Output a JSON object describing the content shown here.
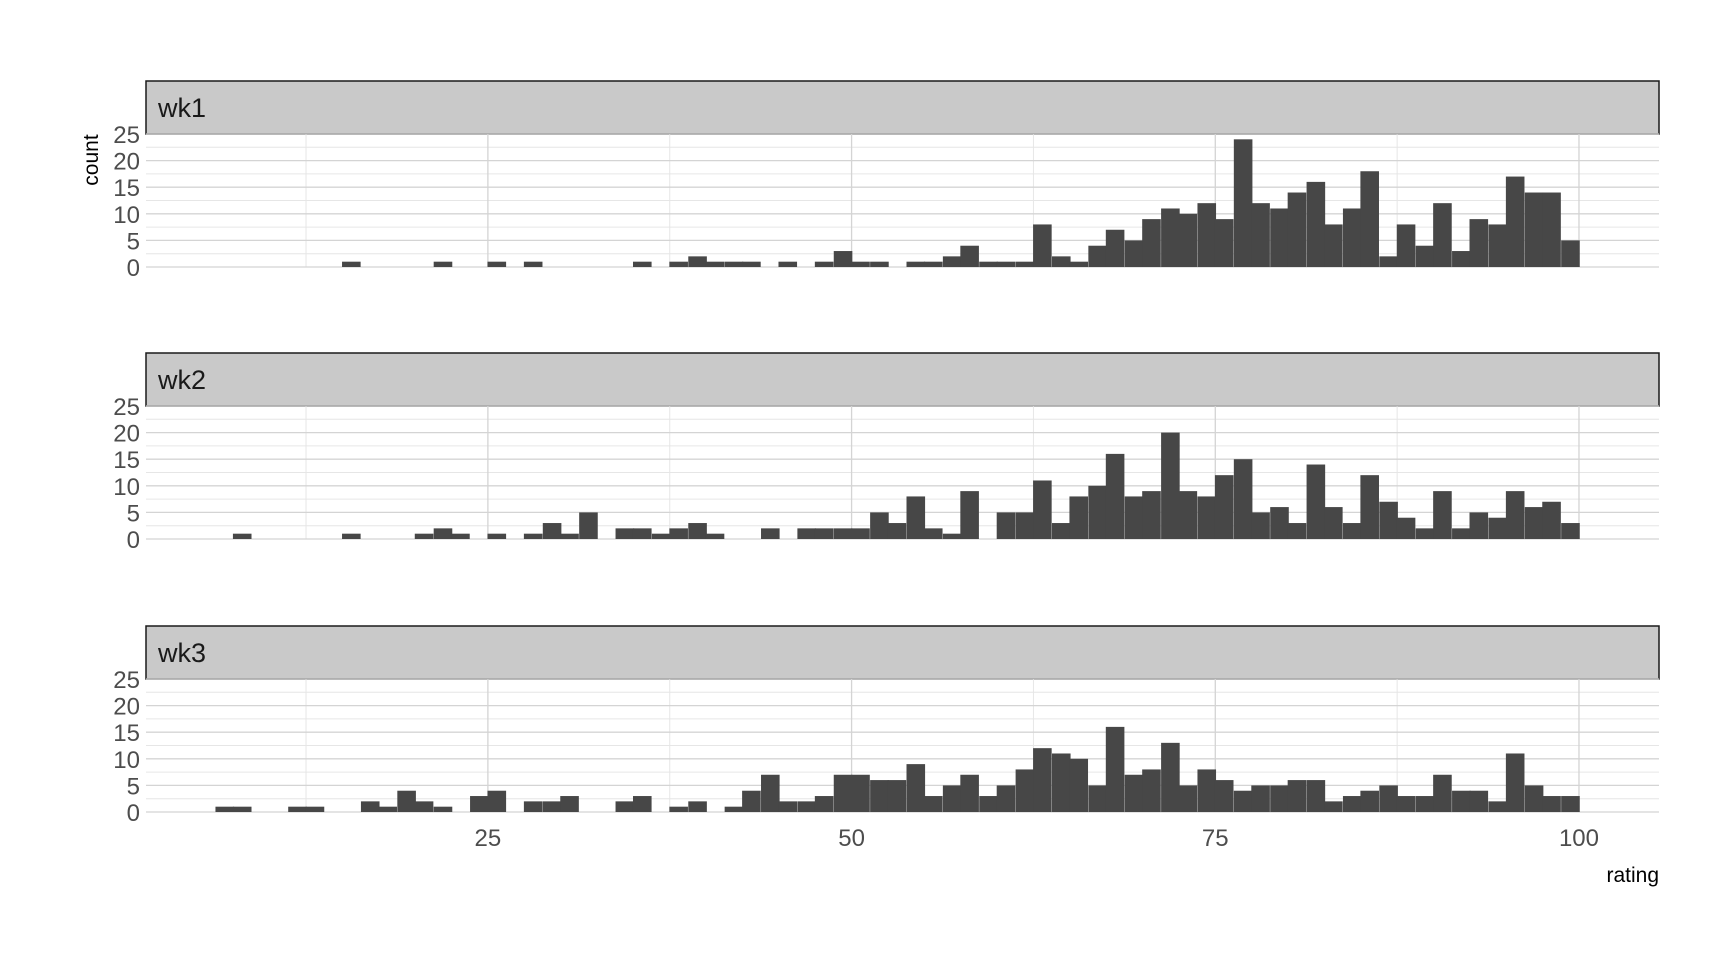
{
  "chart_data": {
    "type": "bar",
    "subtype": "histogram",
    "facet_layout": "stacked-vertical",
    "xlabel": "rating",
    "ylabel": "count",
    "xlim": [
      1.5,
      105.5
    ],
    "ylim": [
      0,
      25
    ],
    "x_ticks": [
      25,
      50,
      75,
      100
    ],
    "y_ticks": [
      0,
      5,
      10,
      15,
      20,
      25
    ],
    "bin_width": 1.25,
    "grid": true,
    "bar_color": "#474747",
    "strip_color": "#c9c9c9",
    "panels": [
      {
        "label": "wk1",
        "bins": [
          {
            "x": 15.6,
            "count": 1
          },
          {
            "x": 21.9,
            "count": 1
          },
          {
            "x": 25.6,
            "count": 1
          },
          {
            "x": 28.1,
            "count": 1
          },
          {
            "x": 35.6,
            "count": 1
          },
          {
            "x": 38.1,
            "count": 1
          },
          {
            "x": 39.4,
            "count": 2
          },
          {
            "x": 40.6,
            "count": 1
          },
          {
            "x": 41.9,
            "count": 1
          },
          {
            "x": 43.1,
            "count": 1
          },
          {
            "x": 45.6,
            "count": 1
          },
          {
            "x": 48.1,
            "count": 1
          },
          {
            "x": 49.4,
            "count": 3
          },
          {
            "x": 50.6,
            "count": 1
          },
          {
            "x": 51.9,
            "count": 1
          },
          {
            "x": 54.4,
            "count": 1
          },
          {
            "x": 55.6,
            "count": 1
          },
          {
            "x": 56.9,
            "count": 2
          },
          {
            "x": 58.1,
            "count": 4
          },
          {
            "x": 59.4,
            "count": 1
          },
          {
            "x": 60.6,
            "count": 1
          },
          {
            "x": 61.9,
            "count": 1
          },
          {
            "x": 63.1,
            "count": 8
          },
          {
            "x": 64.4,
            "count": 2
          },
          {
            "x": 65.6,
            "count": 1
          },
          {
            "x": 66.9,
            "count": 4
          },
          {
            "x": 68.1,
            "count": 7
          },
          {
            "x": 69.4,
            "count": 5
          },
          {
            "x": 70.6,
            "count": 9
          },
          {
            "x": 71.9,
            "count": 11
          },
          {
            "x": 73.1,
            "count": 10
          },
          {
            "x": 74.4,
            "count": 12
          },
          {
            "x": 75.6,
            "count": 9
          },
          {
            "x": 76.9,
            "count": 24
          },
          {
            "x": 78.1,
            "count": 12
          },
          {
            "x": 79.4,
            "count": 11
          },
          {
            "x": 80.6,
            "count": 14
          },
          {
            "x": 81.9,
            "count": 16
          },
          {
            "x": 83.1,
            "count": 8
          },
          {
            "x": 84.4,
            "count": 11
          },
          {
            "x": 85.6,
            "count": 18
          },
          {
            "x": 86.9,
            "count": 2
          },
          {
            "x": 88.1,
            "count": 8
          },
          {
            "x": 89.4,
            "count": 4
          },
          {
            "x": 90.6,
            "count": 12
          },
          {
            "x": 91.9,
            "count": 3
          },
          {
            "x": 93.1,
            "count": 9
          },
          {
            "x": 94.4,
            "count": 8
          },
          {
            "x": 95.6,
            "count": 17
          },
          {
            "x": 96.9,
            "count": 14
          },
          {
            "x": 98.1,
            "count": 14
          },
          {
            "x": 99.4,
            "count": 5
          }
        ]
      },
      {
        "label": "wk2",
        "bins": [
          {
            "x": 8.1,
            "count": 1
          },
          {
            "x": 15.6,
            "count": 1
          },
          {
            "x": 20.6,
            "count": 1
          },
          {
            "x": 21.9,
            "count": 2
          },
          {
            "x": 23.1,
            "count": 1
          },
          {
            "x": 25.6,
            "count": 1
          },
          {
            "x": 28.1,
            "count": 1
          },
          {
            "x": 29.4,
            "count": 3
          },
          {
            "x": 30.6,
            "count": 1
          },
          {
            "x": 31.9,
            "count": 5
          },
          {
            "x": 34.4,
            "count": 2
          },
          {
            "x": 35.6,
            "count": 2
          },
          {
            "x": 36.9,
            "count": 1
          },
          {
            "x": 38.1,
            "count": 2
          },
          {
            "x": 39.4,
            "count": 3
          },
          {
            "x": 40.6,
            "count": 1
          },
          {
            "x": 44.4,
            "count": 2
          },
          {
            "x": 46.9,
            "count": 2
          },
          {
            "x": 48.1,
            "count": 2
          },
          {
            "x": 49.4,
            "count": 2
          },
          {
            "x": 50.6,
            "count": 2
          },
          {
            "x": 51.9,
            "count": 5
          },
          {
            "x": 53.1,
            "count": 3
          },
          {
            "x": 54.4,
            "count": 8
          },
          {
            "x": 55.6,
            "count": 2
          },
          {
            "x": 56.9,
            "count": 1
          },
          {
            "x": 58.1,
            "count": 9
          },
          {
            "x": 60.6,
            "count": 5
          },
          {
            "x": 61.9,
            "count": 5
          },
          {
            "x": 63.1,
            "count": 11
          },
          {
            "x": 64.4,
            "count": 3
          },
          {
            "x": 65.6,
            "count": 8
          },
          {
            "x": 66.9,
            "count": 10
          },
          {
            "x": 68.1,
            "count": 16
          },
          {
            "x": 69.4,
            "count": 8
          },
          {
            "x": 70.6,
            "count": 9
          },
          {
            "x": 71.9,
            "count": 20
          },
          {
            "x": 73.1,
            "count": 9
          },
          {
            "x": 74.4,
            "count": 8
          },
          {
            "x": 75.6,
            "count": 12
          },
          {
            "x": 76.9,
            "count": 15
          },
          {
            "x": 78.1,
            "count": 5
          },
          {
            "x": 79.4,
            "count": 6
          },
          {
            "x": 80.6,
            "count": 3
          },
          {
            "x": 81.9,
            "count": 14
          },
          {
            "x": 83.1,
            "count": 6
          },
          {
            "x": 84.4,
            "count": 3
          },
          {
            "x": 85.6,
            "count": 12
          },
          {
            "x": 86.9,
            "count": 7
          },
          {
            "x": 88.1,
            "count": 4
          },
          {
            "x": 89.4,
            "count": 2
          },
          {
            "x": 90.6,
            "count": 9
          },
          {
            "x": 91.9,
            "count": 2
          },
          {
            "x": 93.1,
            "count": 5
          },
          {
            "x": 94.4,
            "count": 4
          },
          {
            "x": 95.6,
            "count": 9
          },
          {
            "x": 96.9,
            "count": 6
          },
          {
            "x": 98.1,
            "count": 7
          },
          {
            "x": 99.4,
            "count": 3
          }
        ]
      },
      {
        "label": "wk3",
        "bins": [
          {
            "x": 6.9,
            "count": 1
          },
          {
            "x": 8.1,
            "count": 1
          },
          {
            "x": 11.9,
            "count": 1
          },
          {
            "x": 13.1,
            "count": 1
          },
          {
            "x": 16.9,
            "count": 2
          },
          {
            "x": 18.1,
            "count": 1
          },
          {
            "x": 19.4,
            "count": 4
          },
          {
            "x": 20.6,
            "count": 2
          },
          {
            "x": 21.9,
            "count": 1
          },
          {
            "x": 24.4,
            "count": 3
          },
          {
            "x": 25.6,
            "count": 4
          },
          {
            "x": 28.1,
            "count": 2
          },
          {
            "x": 29.4,
            "count": 2
          },
          {
            "x": 30.6,
            "count": 3
          },
          {
            "x": 34.4,
            "count": 2
          },
          {
            "x": 35.6,
            "count": 3
          },
          {
            "x": 38.1,
            "count": 1
          },
          {
            "x": 39.4,
            "count": 2
          },
          {
            "x": 41.9,
            "count": 1
          },
          {
            "x": 43.1,
            "count": 4
          },
          {
            "x": 44.4,
            "count": 7
          },
          {
            "x": 45.6,
            "count": 2
          },
          {
            "x": 46.9,
            "count": 2
          },
          {
            "x": 48.1,
            "count": 3
          },
          {
            "x": 49.4,
            "count": 7
          },
          {
            "x": 50.6,
            "count": 7
          },
          {
            "x": 51.9,
            "count": 6
          },
          {
            "x": 53.1,
            "count": 6
          },
          {
            "x": 54.4,
            "count": 9
          },
          {
            "x": 55.6,
            "count": 3
          },
          {
            "x": 56.9,
            "count": 5
          },
          {
            "x": 58.1,
            "count": 7
          },
          {
            "x": 59.4,
            "count": 3
          },
          {
            "x": 60.6,
            "count": 5
          },
          {
            "x": 61.9,
            "count": 8
          },
          {
            "x": 63.1,
            "count": 12
          },
          {
            "x": 64.4,
            "count": 11
          },
          {
            "x": 65.6,
            "count": 10
          },
          {
            "x": 66.9,
            "count": 5
          },
          {
            "x": 68.1,
            "count": 16
          },
          {
            "x": 69.4,
            "count": 7
          },
          {
            "x": 70.6,
            "count": 8
          },
          {
            "x": 71.9,
            "count": 13
          },
          {
            "x": 73.1,
            "count": 5
          },
          {
            "x": 74.4,
            "count": 8
          },
          {
            "x": 75.6,
            "count": 6
          },
          {
            "x": 76.9,
            "count": 4
          },
          {
            "x": 78.1,
            "count": 5
          },
          {
            "x": 79.4,
            "count": 5
          },
          {
            "x": 80.6,
            "count": 6
          },
          {
            "x": 81.9,
            "count": 6
          },
          {
            "x": 83.1,
            "count": 2
          },
          {
            "x": 84.4,
            "count": 3
          },
          {
            "x": 85.6,
            "count": 4
          },
          {
            "x": 86.9,
            "count": 5
          },
          {
            "x": 88.1,
            "count": 3
          },
          {
            "x": 89.4,
            "count": 3
          },
          {
            "x": 90.6,
            "count": 7
          },
          {
            "x": 91.9,
            "count": 4
          },
          {
            "x": 93.1,
            "count": 4
          },
          {
            "x": 94.4,
            "count": 2
          },
          {
            "x": 95.6,
            "count": 11
          },
          {
            "x": 96.9,
            "count": 5
          },
          {
            "x": 98.1,
            "count": 3
          },
          {
            "x": 99.4,
            "count": 3
          }
        ]
      }
    ]
  }
}
